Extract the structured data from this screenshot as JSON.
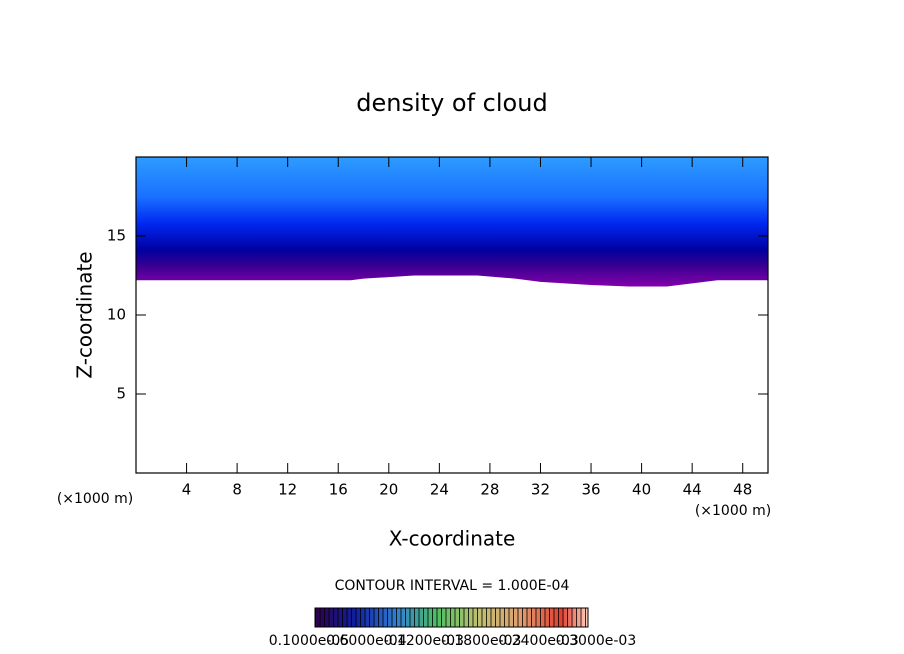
{
  "chart_data": {
    "type": "contour",
    "title": "density of cloud",
    "x_label": "X-coordinate",
    "y_label": "Z-coordinate",
    "x_unit_left": "(×1000 m)",
    "x_unit_right": "(×1000 m)",
    "xlim": [
      0,
      50
    ],
    "ylim": [
      0,
      20
    ],
    "xticks": [
      4,
      8,
      12,
      16,
      20,
      24,
      28,
      32,
      36,
      40,
      44,
      48
    ],
    "yticks": [
      5,
      10,
      15
    ],
    "x": [
      0,
      17,
      18,
      22,
      27,
      30,
      32,
      36,
      39,
      42,
      46,
      50
    ],
    "cloud_base": [
      12.2,
      12.2,
      12.3,
      12.5,
      12.5,
      12.3,
      12.1,
      11.9,
      11.8,
      11.8,
      12.2,
      12.2
    ],
    "cloud_top": 20,
    "contour_interval": "CONTOUR INTERVAL = 1.000E-04",
    "colorbar_labels": [
      "0.1000e-05",
      "0.6000e-04",
      "0.1200e-03",
      "0.1800e-03",
      "0.2400e-03",
      "0.3000e-03"
    ]
  }
}
